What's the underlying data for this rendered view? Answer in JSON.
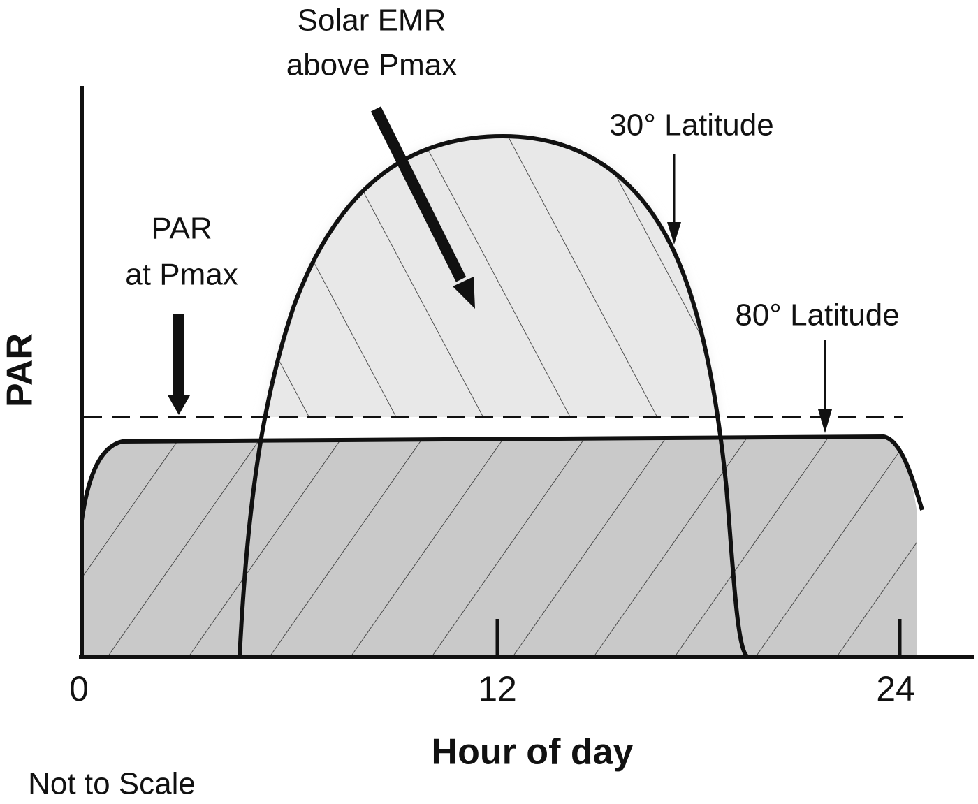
{
  "title_annotations": {
    "solar_line1": "Solar EMR",
    "solar_line2": "above Pmax",
    "lat30": "30° Latitude",
    "par_line1": "PAR",
    "par_line2": "at Pmax",
    "lat80": "80° Latitude"
  },
  "axes": {
    "y_label": "PAR",
    "x_label": "Hour of day",
    "x_ticks": [
      "0",
      "12",
      "24"
    ]
  },
  "note": "Not to Scale"
}
